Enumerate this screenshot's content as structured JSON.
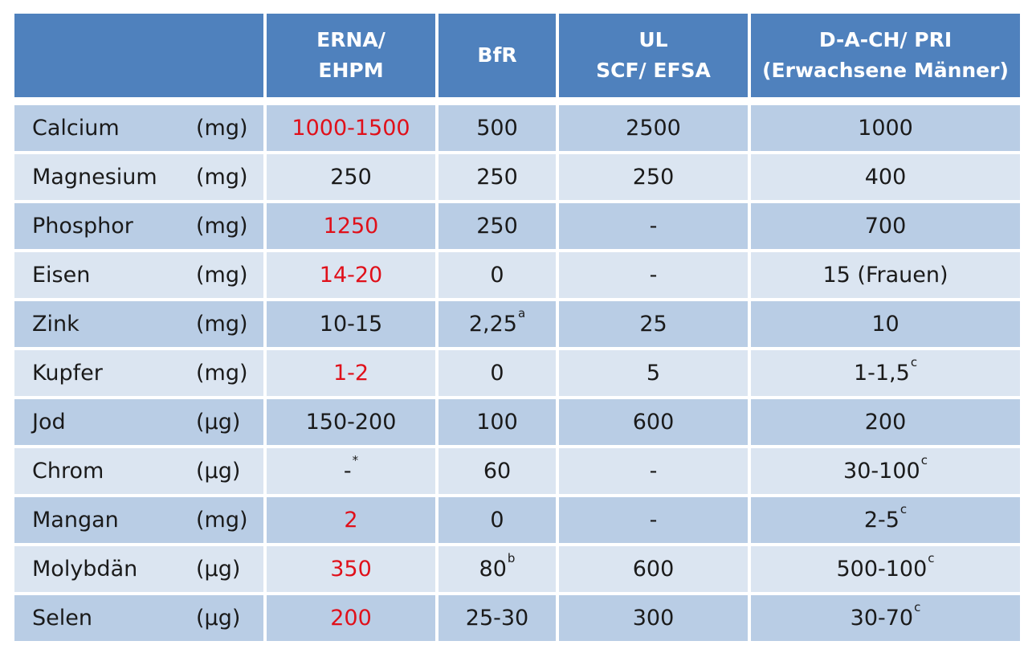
{
  "header": {
    "col1_line1": "ERNA/",
    "col1_line2": "EHPM",
    "col2_line1": "BfR",
    "col3_line1": "UL",
    "col3_line2": "SCF/ EFSA",
    "col4_line1": "D-A-CH/ PRI",
    "col4_line2": "(Erwachsene Männer)"
  },
  "colors": {
    "header_bg": "#4f81bd",
    "row_dark": "#b9cde5",
    "row_light": "#dbe5f1",
    "highlight_red": "#e0101a"
  },
  "rows": [
    {
      "name": "Calcium",
      "unit": "(mg)",
      "erna": "1000-1500",
      "erna_red": true,
      "erna_sup": "",
      "bfr": "500",
      "bfr_sup": "",
      "ul": "2500",
      "dach": "1000",
      "dach_sup": ""
    },
    {
      "name": "Magnesium",
      "unit": "(mg)",
      "erna": "250",
      "erna_red": false,
      "erna_sup": "",
      "bfr": "250",
      "bfr_sup": "",
      "ul": "250",
      "dach": "400",
      "dach_sup": ""
    },
    {
      "name": "Phosphor",
      "unit": "(mg)",
      "erna": "1250",
      "erna_red": true,
      "erna_sup": "",
      "bfr": "250",
      "bfr_sup": "",
      "ul": "-",
      "dach": "700",
      "dach_sup": ""
    },
    {
      "name": "Eisen",
      "unit": "(mg)",
      "erna": "14-20",
      "erna_red": true,
      "erna_sup": "",
      "bfr": "0",
      "bfr_sup": "",
      "ul": "-",
      "dach": "15 (Frauen)",
      "dach_sup": ""
    },
    {
      "name": "Zink",
      "unit": "(mg)",
      "erna": "10-15",
      "erna_red": false,
      "erna_sup": "",
      "bfr": "2,25",
      "bfr_sup": "a",
      "ul": "25",
      "dach": "10",
      "dach_sup": ""
    },
    {
      "name": "Kupfer",
      "unit": "(mg)",
      "erna": "1-2",
      "erna_red": true,
      "erna_sup": "",
      "bfr": "0",
      "bfr_sup": "",
      "ul": "5",
      "dach": "1-1,5",
      "dach_sup": "c"
    },
    {
      "name": "Jod",
      "unit": "(µg)",
      "erna": "150-200",
      "erna_red": false,
      "erna_sup": "",
      "bfr": "100",
      "bfr_sup": "",
      "ul": "600",
      "dach": "200",
      "dach_sup": ""
    },
    {
      "name": "Chrom",
      "unit": "(µg)",
      "erna": "-",
      "erna_red": false,
      "erna_sup": "*",
      "bfr": "60",
      "bfr_sup": "",
      "ul": "-",
      "dach": "30-100",
      "dach_sup": "c"
    },
    {
      "name": "Mangan",
      "unit": "(mg)",
      "erna": "2",
      "erna_red": true,
      "erna_sup": "",
      "bfr": "0",
      "bfr_sup": "",
      "ul": "-",
      "dach": "2-5",
      "dach_sup": "c"
    },
    {
      "name": "Molybdän",
      "unit": "(µg)",
      "erna": "350",
      "erna_red": true,
      "erna_sup": "",
      "bfr": "80",
      "bfr_sup": "b",
      "ul": "600",
      "dach": "500-100",
      "dach_sup": "c"
    },
    {
      "name": "Selen",
      "unit": "(µg)",
      "erna": "200",
      "erna_red": true,
      "erna_sup": "",
      "bfr": "25-30",
      "bfr_sup": "",
      "ul": "300",
      "dach": "30-70",
      "dach_sup": "c"
    }
  ]
}
